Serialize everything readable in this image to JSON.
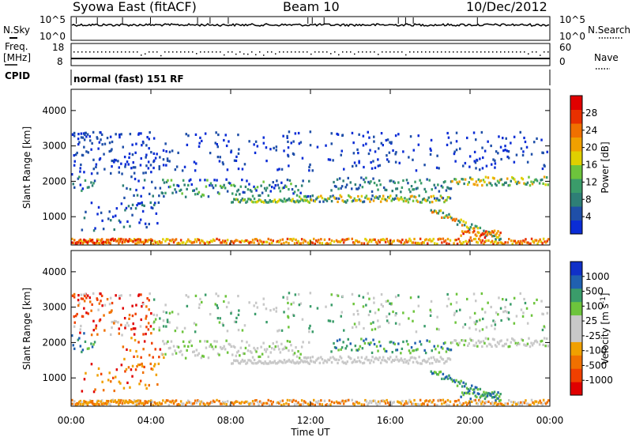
{
  "header": {
    "station": "Syowa East (fitACF)",
    "beam": "Beam 10",
    "date": "10/Dec/2012"
  },
  "top_panels": {
    "nsky_label": "N.Sky",
    "nsearch_label": "N.Search",
    "noise_left_ticks": [
      "10^5",
      "10^0"
    ],
    "noise_right_ticks": [
      "10^5",
      "10^0"
    ],
    "freq_label_1": "Freq.",
    "freq_label_2": "[MHz]",
    "freq_ticks": [
      "18",
      "8"
    ],
    "nave_ticks": [
      "60",
      "0"
    ],
    "nave_label": "Nave",
    "cpid_label": "CPID",
    "cpid_text": "normal (fast) 151 RF"
  },
  "colors": {
    "power": [
      "#0a2cd6",
      "#1f4fa8",
      "#2e7f76",
      "#3a9c6a",
      "#6dc43c",
      "#e0d000",
      "#f0a000",
      "#f07000",
      "#e83000",
      "#e00000"
    ],
    "velocity": [
      "#e00000",
      "#f04000",
      "#f07000",
      "#f0a000",
      "#c8c8c8",
      "#c8c8c8",
      "#6dc43c",
      "#3a9c6a",
      "#2060b0",
      "#1030c8"
    ]
  },
  "chart_data": [
    {
      "type": "heatmap",
      "name": "power",
      "xlabel": "",
      "ylabel": "Slant Range [km]",
      "yticks": [
        "1000",
        "2000",
        "3000",
        "4000"
      ],
      "ylim": [
        200,
        4600
      ],
      "colorbar_label": "Power [dB]",
      "colorbar_ticks": [
        "4",
        "8",
        "12",
        "16",
        "20",
        "24",
        "28"
      ],
      "colorbar_range": [
        0,
        30
      ]
    },
    {
      "type": "heatmap",
      "name": "velocity",
      "xlabel": "Time UT",
      "ylabel": "Slant Range [km]",
      "yticks": [
        "1000",
        "2000",
        "3000",
        "4000"
      ],
      "ylim": [
        200,
        4600
      ],
      "colorbar_label": "Velocity [m s",
      "colorbar_label_sup": "-1",
      "colorbar_label_end": "]",
      "colorbar_ticks": [
        "-1000",
        "-500",
        "-100",
        "-25",
        "25",
        "100",
        "500",
        "1000"
      ],
      "xticks": [
        "00:00",
        "04:00",
        "08:00",
        "12:00",
        "16:00",
        "20:00",
        "00:00"
      ],
      "xlim_hours": [
        0,
        24
      ]
    }
  ]
}
